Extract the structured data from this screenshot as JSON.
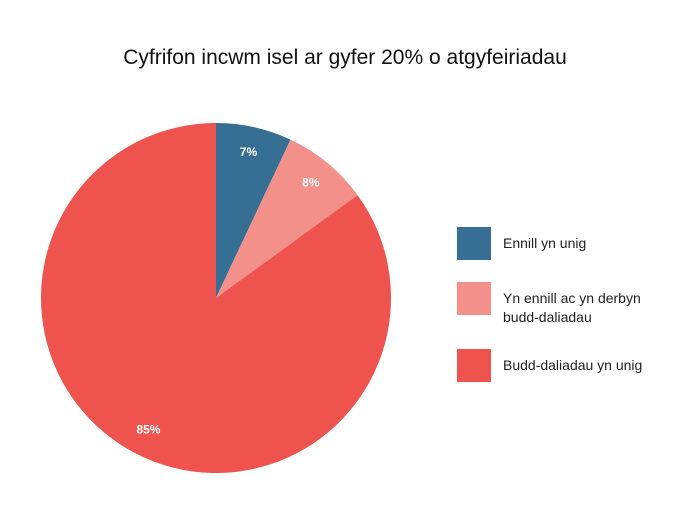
{
  "chart_data": {
    "type": "pie",
    "title": "Cyfrifon incwm isel ar gyfer 20% o atgyfeiriadau",
    "categories": [
      "Ennill yn unig",
      "Yn ennill ac yn derbyn budd-daliadau",
      "Budd-daliadau yn unig"
    ],
    "values": [
      7,
      8,
      85
    ],
    "value_labels": [
      "7%",
      "8%",
      "85%"
    ],
    "colors": [
      "#376f94",
      "#f4908a",
      "#ef534d"
    ]
  }
}
